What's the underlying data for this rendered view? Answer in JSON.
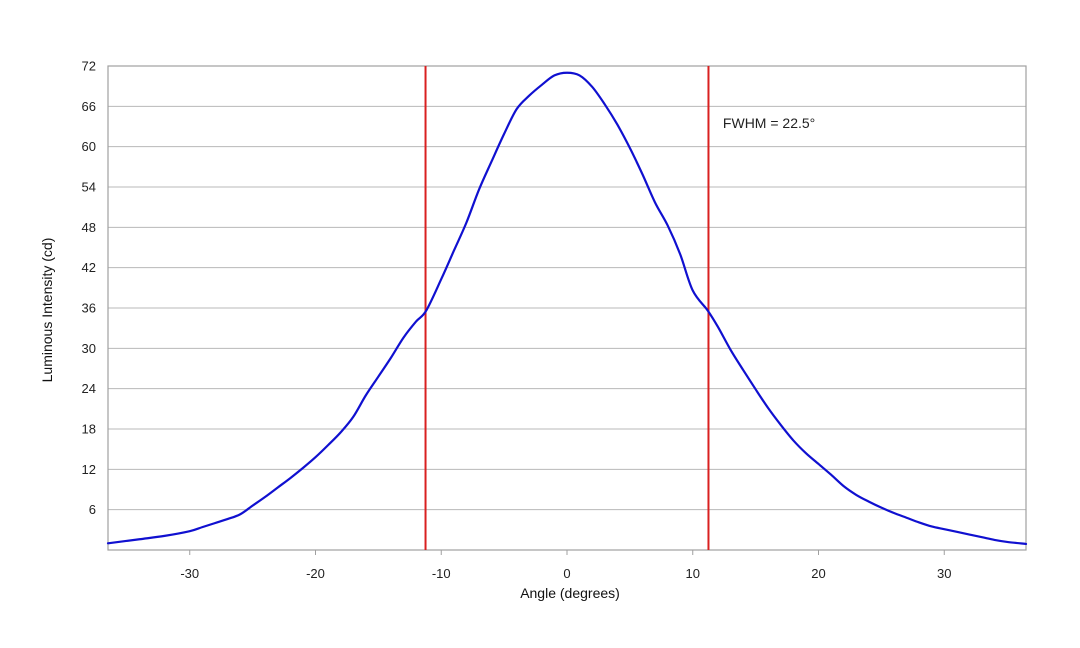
{
  "chart_data": {
    "type": "line",
    "title": "",
    "xlabel": "Angle (degrees)",
    "ylabel": "Luminous Intensity (cd)",
    "xlim": [
      -36.5,
      36.5
    ],
    "ylim": [
      0,
      72
    ],
    "xticks": [
      -30,
      -20,
      -10,
      0,
      10,
      20,
      30
    ],
    "xtick_labels": [
      "-30",
      "-20",
      "-10",
      "0",
      "10",
      "20",
      "30"
    ],
    "yticks": [
      6,
      12,
      18,
      24,
      30,
      36,
      42,
      48,
      54,
      60,
      66,
      72
    ],
    "ytick_labels": [
      "6",
      "12",
      "18",
      "24",
      "30",
      "36",
      "42",
      "48",
      "54",
      "60",
      "66",
      "72"
    ],
    "grid": "horizontal",
    "legend": "none",
    "series": [
      {
        "color": "#1010d0",
        "x": [
          -36.5,
          -34,
          -32,
          -30,
          -29,
          -28,
          -27,
          -26,
          -25,
          -24,
          -23,
          -22,
          -21,
          -20,
          -19,
          -18,
          -17,
          -16,
          -15,
          -14,
          -13,
          -12,
          -11.2,
          -10,
          -9,
          -8,
          -7,
          -6,
          -5,
          -4,
          -3,
          -2,
          -1,
          0,
          1,
          2,
          3,
          4,
          5,
          6,
          7,
          8,
          9,
          10,
          11.2,
          12,
          13,
          14,
          15,
          16,
          17,
          18,
          19,
          20,
          21,
          22,
          23,
          24,
          25,
          26,
          27,
          28,
          29,
          30,
          31,
          32,
          33,
          34,
          35,
          36.5
        ],
        "y": [
          1.0,
          1.6,
          2.1,
          2.8,
          3.4,
          4.0,
          4.6,
          5.3,
          6.6,
          7.9,
          9.3,
          10.7,
          12.2,
          13.8,
          15.6,
          17.5,
          19.8,
          23.0,
          25.8,
          28.6,
          31.6,
          34.0,
          35.6,
          40.3,
          44.5,
          48.7,
          53.6,
          57.8,
          61.9,
          65.6,
          67.6,
          69.2,
          70.6,
          71.0,
          70.6,
          68.9,
          66.3,
          63.3,
          59.8,
          55.9,
          51.7,
          48.3,
          44.0,
          38.6,
          35.6,
          33.2,
          29.8,
          26.8,
          23.9,
          21.1,
          18.6,
          16.3,
          14.4,
          12.8,
          11.2,
          9.5,
          8.2,
          7.2,
          6.3,
          5.5,
          4.8,
          4.1,
          3.5,
          3.1,
          2.7,
          2.3,
          1.9,
          1.5,
          1.2,
          0.9
        ]
      }
    ],
    "reference_lines": [
      {
        "x": -11.25,
        "color": "#d92020"
      },
      {
        "x": 11.25,
        "color": "#d92020"
      }
    ],
    "annotations": [
      {
        "text": "FWHM = 22.5°",
        "x": 12.4,
        "y": 62.8
      }
    ],
    "colors": {
      "grid": "#b8b8b8",
      "frame": "#a0a0a0",
      "curve": "#1010d0",
      "reference": "#d92020"
    }
  }
}
